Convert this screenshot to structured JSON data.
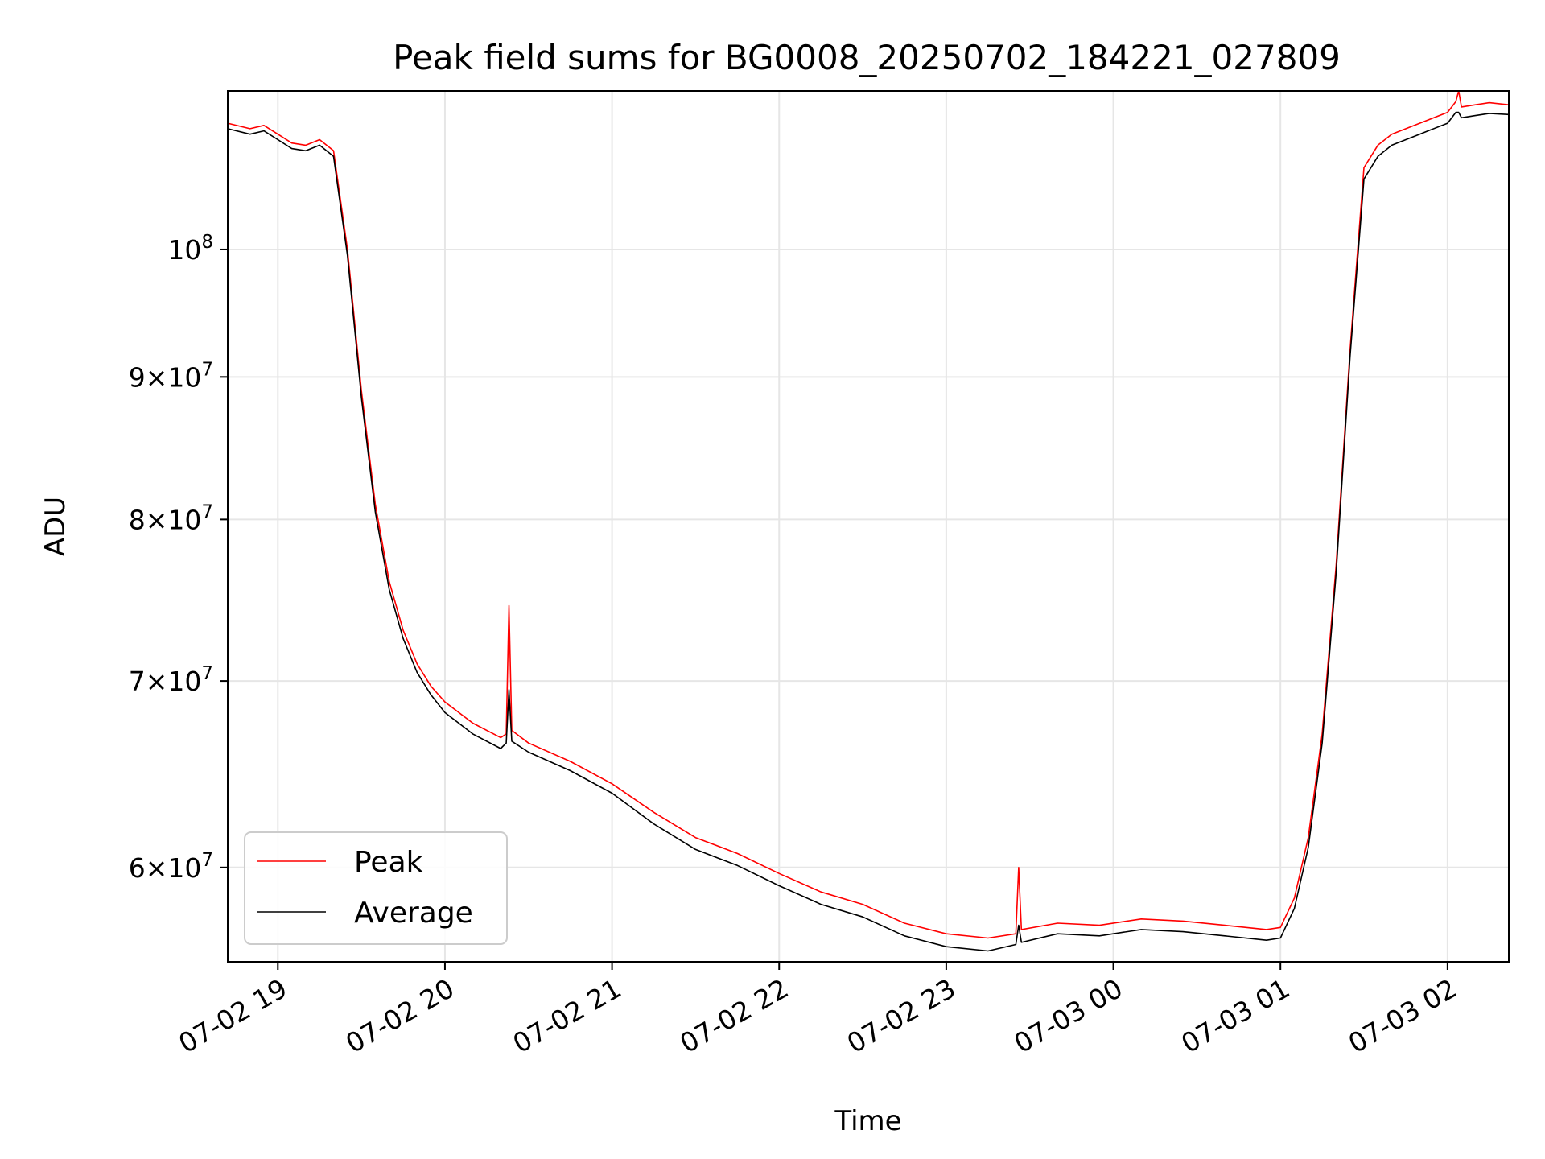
{
  "chart_data": {
    "type": "line",
    "title": "Peak field sums for BG0008_20250702_184221_027809",
    "xlabel": "Time",
    "ylabel": "ADU",
    "y_scale": "log",
    "x_range": [
      "2025-07-02 18:42",
      "2025-07-03 02:22"
    ],
    "ylim": [
      55500000,
      114000000
    ],
    "grid": true,
    "legend_position": "lower-left",
    "x_ticks": [
      {
        "value": "2025-07-02 19:00",
        "label": "07-02 19"
      },
      {
        "value": "2025-07-02 20:00",
        "label": "07-02 20"
      },
      {
        "value": "2025-07-02 21:00",
        "label": "07-02 21"
      },
      {
        "value": "2025-07-02 22:00",
        "label": "07-02 22"
      },
      {
        "value": "2025-07-02 23:00",
        "label": "07-02 23"
      },
      {
        "value": "2025-07-03 00:00",
        "label": "07-03 00"
      },
      {
        "value": "2025-07-03 01:00",
        "label": "07-03 01"
      },
      {
        "value": "2025-07-03 02:00",
        "label": "07-03 02"
      }
    ],
    "y_ticks": [
      {
        "value": 60000000,
        "mantissa": "6",
        "exp": "7"
      },
      {
        "value": 70000000,
        "mantissa": "7",
        "exp": "7"
      },
      {
        "value": 80000000,
        "mantissa": "8",
        "exp": "7"
      },
      {
        "value": 90000000,
        "mantissa": "9",
        "exp": "7"
      },
      {
        "value": 100000000,
        "mantissa": "",
        "exp": "8"
      }
    ],
    "series": [
      {
        "name": "Peak",
        "color": "#ff0000",
        "x": [
          "2025-07-02 18:42",
          "2025-07-02 18:50",
          "2025-07-02 18:55",
          "2025-07-02 19:00",
          "2025-07-02 19:05",
          "2025-07-02 19:10",
          "2025-07-02 19:15",
          "2025-07-02 19:20",
          "2025-07-02 19:25",
          "2025-07-02 19:30",
          "2025-07-02 19:35",
          "2025-07-02 19:40",
          "2025-07-02 19:45",
          "2025-07-02 19:50",
          "2025-07-02 19:55",
          "2025-07-02 20:00",
          "2025-07-02 20:10",
          "2025-07-02 20:20",
          "2025-07-02 20:22",
          "2025-07-02 20:23",
          "2025-07-02 20:24",
          "2025-07-02 20:30",
          "2025-07-02 20:45",
          "2025-07-02 21:00",
          "2025-07-02 21:15",
          "2025-07-02 21:30",
          "2025-07-02 21:45",
          "2025-07-02 22:00",
          "2025-07-02 22:15",
          "2025-07-02 22:30",
          "2025-07-02 22:45",
          "2025-07-02 23:00",
          "2025-07-02 23:15",
          "2025-07-02 23:25",
          "2025-07-02 23:26",
          "2025-07-02 23:27",
          "2025-07-02 23:40",
          "2025-07-02 23:55",
          "2025-07-03 00:10",
          "2025-07-03 00:25",
          "2025-07-03 00:40",
          "2025-07-03 00:55",
          "2025-07-03 01:00",
          "2025-07-03 01:05",
          "2025-07-03 01:10",
          "2025-07-03 01:15",
          "2025-07-03 01:20",
          "2025-07-03 01:25",
          "2025-07-03 01:30",
          "2025-07-03 01:35",
          "2025-07-03 01:40",
          "2025-07-03 01:50",
          "2025-07-03 02:00",
          "2025-07-03 02:03",
          "2025-07-03 02:04",
          "2025-07-03 02:05",
          "2025-07-03 02:10",
          "2025-07-03 02:15",
          "2025-07-03 02:22"
        ],
        "y": [
          111000000,
          110500000,
          110800000,
          110000000,
          109200000,
          109000000,
          109500000,
          108500000,
          100000000,
          89000000,
          81000000,
          76000000,
          73000000,
          71000000,
          69700000,
          68800000,
          67600000,
          66800000,
          67000000,
          74500000,
          67200000,
          66500000,
          65500000,
          64300000,
          62800000,
          61500000,
          60700000,
          59700000,
          58800000,
          58200000,
          57300000,
          56800000,
          56600000,
          56800000,
          60000000,
          57000000,
          57300000,
          57200000,
          57500000,
          57400000,
          57200000,
          57000000,
          57100000,
          58500000,
          61500000,
          67000000,
          77000000,
          92000000,
          107000000,
          109000000,
          110000000,
          111000000,
          112000000,
          113000000,
          114000000,
          112500000,
          112700000,
          112900000,
          112700000
        ]
      },
      {
        "name": "Average",
        "color": "#000000",
        "x": [
          "2025-07-02 18:42",
          "2025-07-02 18:50",
          "2025-07-02 18:55",
          "2025-07-02 19:00",
          "2025-07-02 19:05",
          "2025-07-02 19:10",
          "2025-07-02 19:15",
          "2025-07-02 19:20",
          "2025-07-02 19:25",
          "2025-07-02 19:30",
          "2025-07-02 19:35",
          "2025-07-02 19:40",
          "2025-07-02 19:45",
          "2025-07-02 19:50",
          "2025-07-02 19:55",
          "2025-07-02 20:00",
          "2025-07-02 20:10",
          "2025-07-02 20:20",
          "2025-07-02 20:22",
          "2025-07-02 20:23",
          "2025-07-02 20:24",
          "2025-07-02 20:30",
          "2025-07-02 20:45",
          "2025-07-02 21:00",
          "2025-07-02 21:15",
          "2025-07-02 21:30",
          "2025-07-02 21:45",
          "2025-07-02 22:00",
          "2025-07-02 22:15",
          "2025-07-02 22:30",
          "2025-07-02 22:45",
          "2025-07-02 23:00",
          "2025-07-02 23:15",
          "2025-07-02 23:25",
          "2025-07-02 23:26",
          "2025-07-02 23:27",
          "2025-07-02 23:40",
          "2025-07-02 23:55",
          "2025-07-03 00:10",
          "2025-07-03 00:25",
          "2025-07-03 00:40",
          "2025-07-03 00:55",
          "2025-07-03 01:00",
          "2025-07-03 01:05",
          "2025-07-03 01:10",
          "2025-07-03 01:15",
          "2025-07-03 01:20",
          "2025-07-03 01:25",
          "2025-07-03 01:30",
          "2025-07-03 01:35",
          "2025-07-03 01:40",
          "2025-07-03 01:50",
          "2025-07-03 02:00",
          "2025-07-03 02:03",
          "2025-07-03 02:04",
          "2025-07-03 02:05",
          "2025-07-03 02:10",
          "2025-07-03 02:15",
          "2025-07-03 02:22"
        ],
        "y": [
          110500000,
          110000000,
          110300000,
          109500000,
          108700000,
          108500000,
          109000000,
          108000000,
          99500000,
          88500000,
          80500000,
          75500000,
          72500000,
          70500000,
          69200000,
          68200000,
          67000000,
          66200000,
          66500000,
          69500000,
          66600000,
          66000000,
          65000000,
          63800000,
          62200000,
          60900000,
          60100000,
          59100000,
          58200000,
          57600000,
          56700000,
          56200000,
          56000000,
          56300000,
          57200000,
          56400000,
          56800000,
          56700000,
          57000000,
          56900000,
          56700000,
          56500000,
          56600000,
          58000000,
          61000000,
          66500000,
          76500000,
          91500000,
          106000000,
          108000000,
          109000000,
          110000000,
          111000000,
          112000000,
          112000000,
          111500000,
          111700000,
          111900000,
          111800000
        ]
      }
    ]
  }
}
